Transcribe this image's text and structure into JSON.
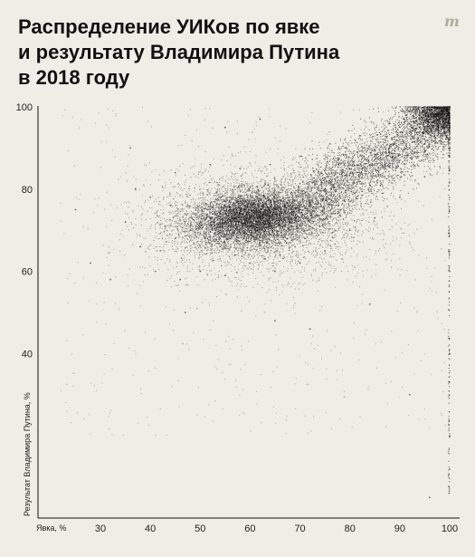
{
  "title_lines": [
    "Распределение УИКов по явке",
    "и результату Владимира Путина",
    "в 2018 году"
  ],
  "logo_glyph": "m",
  "logo_icon": "meduza-logo-icon",
  "chart_data": {
    "type": "scatter",
    "title": "Распределение УИКов по явке и результату Владимира Путина в 2018 году",
    "xlabel": "Явка, %",
    "ylabel": "Результат Владимира Путина, %",
    "xlim": [
      20,
      100
    ],
    "ylim": [
      0,
      100
    ],
    "x_ticks": [
      "30",
      "40",
      "50",
      "60",
      "70",
      "80",
      "90",
      "100"
    ],
    "y_ticks": [
      "40",
      "60",
      "80",
      "100"
    ],
    "grid": false,
    "point_color": "#111111",
    "series": [
      {
        "points": [
          [
            60,
            73
          ],
          [
            61,
            74
          ],
          [
            59,
            72
          ],
          [
            62,
            73
          ],
          [
            58,
            74
          ],
          [
            60,
            71
          ],
          [
            63,
            75
          ],
          [
            57,
            73
          ],
          [
            55,
            72
          ],
          [
            65,
            74
          ],
          [
            64,
            72
          ],
          [
            56,
            75
          ],
          [
            61,
            70
          ],
          [
            59,
            76
          ],
          [
            66,
            73
          ],
          [
            54,
            71
          ],
          [
            67,
            76
          ],
          [
            53,
            74
          ],
          [
            68,
            72
          ],
          [
            52,
            73
          ],
          [
            62,
            69
          ],
          [
            58,
            77
          ],
          [
            70,
            75
          ],
          [
            50,
            72
          ],
          [
            72,
            78
          ],
          [
            48,
            70
          ],
          [
            75,
            80
          ],
          [
            45,
            68
          ],
          [
            78,
            82
          ],
          [
            43,
            71
          ],
          [
            80,
            85
          ],
          [
            42,
            65
          ],
          [
            82,
            84
          ],
          [
            85,
            88
          ],
          [
            88,
            90
          ],
          [
            90,
            92
          ],
          [
            92,
            94
          ],
          [
            94,
            95
          ],
          [
            96,
            97
          ],
          [
            98,
            99
          ],
          [
            100,
            100
          ],
          [
            100,
            98
          ],
          [
            100,
            95
          ],
          [
            100,
            90
          ],
          [
            99,
            96
          ],
          [
            97,
            93
          ],
          [
            95,
            91
          ],
          [
            93,
            89
          ],
          [
            91,
            87
          ],
          [
            87,
            86
          ],
          [
            84,
            81
          ],
          [
            81,
            79
          ],
          [
            79,
            77
          ],
          [
            77,
            74
          ],
          [
            74,
            71
          ],
          [
            71,
            68
          ],
          [
            69,
            66
          ],
          [
            66,
            64
          ],
          [
            63,
            63
          ],
          [
            60,
            62
          ],
          [
            57,
            64
          ],
          [
            54,
            66
          ],
          [
            51,
            68
          ],
          [
            47,
            74
          ],
          [
            44,
            76
          ],
          [
            40,
            78
          ],
          [
            37,
            80
          ],
          [
            35,
            72
          ],
          [
            38,
            66
          ],
          [
            41,
            60
          ],
          [
            46,
            58
          ],
          [
            50,
            60
          ],
          [
            55,
            59
          ],
          [
            65,
            60
          ],
          [
            70,
            62
          ],
          [
            75,
            65
          ],
          [
            80,
            70
          ],
          [
            85,
            73
          ],
          [
            90,
            78
          ],
          [
            95,
            83
          ],
          [
            100,
            60
          ],
          [
            100,
            40
          ],
          [
            100,
            20
          ],
          [
            25,
            75
          ],
          [
            28,
            62
          ],
          [
            32,
            58
          ],
          [
            36,
            90
          ],
          [
            45,
            84
          ],
          [
            52,
            86
          ],
          [
            58,
            85
          ],
          [
            64,
            86
          ],
          [
            70,
            88
          ],
          [
            76,
            91
          ],
          [
            82,
            93
          ],
          [
            88,
            96
          ],
          [
            94,
            99
          ],
          [
            62,
            97
          ],
          [
            55,
            95
          ],
          [
            47,
            50
          ],
          [
            65,
            48
          ],
          [
            72,
            46
          ],
          [
            84,
            52
          ],
          [
            92,
            30
          ],
          [
            96,
            5
          ]
        ]
      }
    ]
  }
}
